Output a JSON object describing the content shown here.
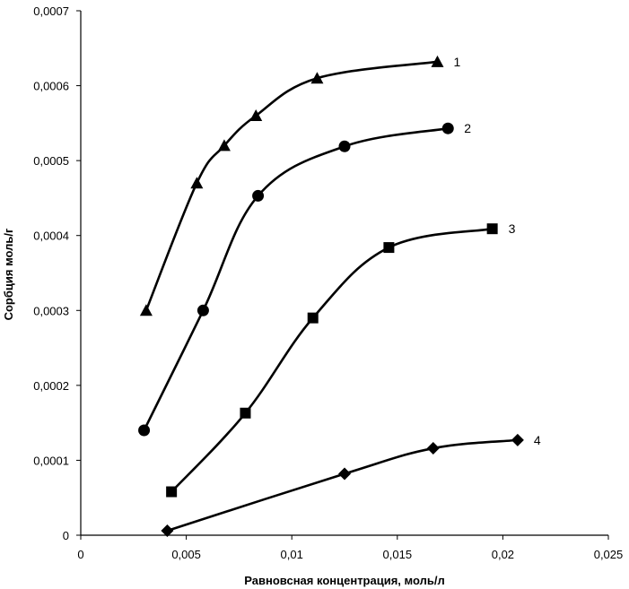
{
  "chart_data": {
    "type": "scatter",
    "title": "",
    "xlabel": "Равновсная концентрация, моль/л",
    "ylabel": "Сорбция моль/г",
    "xlim": [
      0,
      0.025
    ],
    "ylim": [
      0,
      0.0007
    ],
    "grid": false,
    "legend": "none",
    "x_ticks": [
      "0",
      "0,005",
      "0,01",
      "0,015",
      "0,02",
      "0,025"
    ],
    "y_ticks": [
      "0",
      "0,0001",
      "0,0002",
      "0,0003",
      "0,0004",
      "0,0005",
      "0,0006",
      "0,0007"
    ],
    "series": [
      {
        "label": "1",
        "marker": "triangle",
        "color": "#000000",
        "x": [
          0.0031,
          0.0055,
          0.0068,
          0.0083,
          0.0112,
          0.0169
        ],
        "y": [
          0.0003,
          0.00047,
          0.00052,
          0.00056,
          0.00061,
          0.000632
        ]
      },
      {
        "label": "2",
        "marker": "circle",
        "color": "#000000",
        "x": [
          0.003,
          0.0058,
          0.0084,
          0.0125,
          0.0174
        ],
        "y": [
          0.00014,
          0.0003,
          0.000453,
          0.000519,
          0.000543
        ]
      },
      {
        "label": "3",
        "marker": "square",
        "color": "#000000",
        "x": [
          0.0043,
          0.0078,
          0.011,
          0.0146,
          0.0195
        ],
        "y": [
          5.8e-05,
          0.000163,
          0.00029,
          0.000384,
          0.000409
        ]
      },
      {
        "label": "4",
        "marker": "diamond",
        "color": "#000000",
        "x": [
          0.0041,
          0.0125,
          0.0167,
          0.0207
        ],
        "y": [
          6e-06,
          8.2e-05,
          0.000116,
          0.000127
        ]
      }
    ]
  }
}
